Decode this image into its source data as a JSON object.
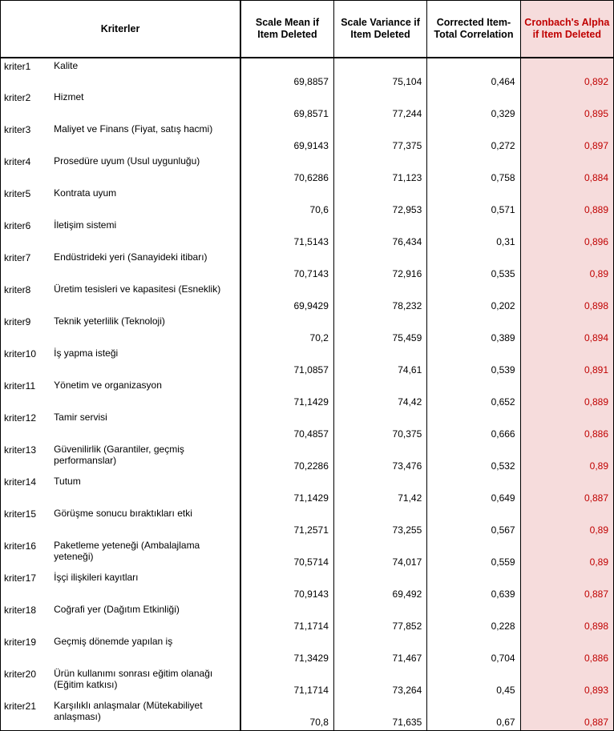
{
  "headers": {
    "kriterler": "Kriterler",
    "scale_mean": "Scale Mean if Item Deleted",
    "scale_var": "Scale Variance if Item Deleted",
    "corrected": "Corrected Item-Total Correlation",
    "alpha": "Cronbach's Alpha if Item Deleted"
  },
  "columns": {
    "id_width": 60,
    "label_width": 212,
    "num_width": 108,
    "alpha_width": 108
  },
  "colors": {
    "alpha_text": "#c00000",
    "alpha_bg": "#f6dcdc",
    "border": "#000000",
    "background": "#ffffff"
  },
  "typography": {
    "body_fontsize": 12,
    "header_fontsize": 12.5,
    "font_family": "Arial"
  },
  "rows": [
    {
      "id": "kriter1",
      "label": "Kalite",
      "mean": "69,8857",
      "var": "75,104",
      "corr": "0,464",
      "alpha": "0,892"
    },
    {
      "id": "kriter2",
      "label": "Hizmet",
      "mean": "69,8571",
      "var": "77,244",
      "corr": "0,329",
      "alpha": "0,895"
    },
    {
      "id": "kriter3",
      "label": "Maliyet ve Finans (Fiyat, satış hacmi)",
      "mean": "69,9143",
      "var": "77,375",
      "corr": "0,272",
      "alpha": "0,897"
    },
    {
      "id": "kriter4",
      "label": "Prosedüre uyum (Usul uygunluğu)",
      "mean": "70,6286",
      "var": "71,123",
      "corr": "0,758",
      "alpha": "0,884"
    },
    {
      "id": "kriter5",
      "label": "Kontrata uyum",
      "mean": "70,6",
      "var": "72,953",
      "corr": "0,571",
      "alpha": "0,889"
    },
    {
      "id": "kriter6",
      "label": "İletişim sistemi",
      "mean": "71,5143",
      "var": "76,434",
      "corr": "0,31",
      "alpha": "0,896"
    },
    {
      "id": "kriter7",
      "label": "Endüstrideki yeri (Sanayideki itibarı)",
      "mean": "70,7143",
      "var": "72,916",
      "corr": "0,535",
      "alpha": "0,89"
    },
    {
      "id": "kriter8",
      "label": "Üretim tesisleri ve kapasitesi (Esneklik)",
      "mean": "69,9429",
      "var": "78,232",
      "corr": "0,202",
      "alpha": "0,898"
    },
    {
      "id": "kriter9",
      "label": "Teknik yeterlilik (Teknoloji)",
      "mean": "70,2",
      "var": "75,459",
      "corr": "0,389",
      "alpha": "0,894"
    },
    {
      "id": "kriter10",
      "label": "İş yapma isteği",
      "mean": "71,0857",
      "var": "74,61",
      "corr": "0,539",
      "alpha": "0,891"
    },
    {
      "id": "kriter11",
      "label": "Yönetim ve organizasyon",
      "mean": "71,1429",
      "var": "74,42",
      "corr": "0,652",
      "alpha": "0,889"
    },
    {
      "id": "kriter12",
      "label": "Tamir servisi",
      "mean": "70,4857",
      "var": "70,375",
      "corr": "0,666",
      "alpha": "0,886"
    },
    {
      "id": "kriter13",
      "label": "Güvenilirlik (Garantiler, geçmiş performanslar)",
      "mean": "70,2286",
      "var": "73,476",
      "corr": "0,532",
      "alpha": "0,89"
    },
    {
      "id": "kriter14",
      "label": "Tutum",
      "mean": "71,1429",
      "var": "71,42",
      "corr": "0,649",
      "alpha": "0,887"
    },
    {
      "id": "kriter15",
      "label": "Görüşme sonucu bıraktıkları etki",
      "mean": "71,2571",
      "var": "73,255",
      "corr": "0,567",
      "alpha": "0,89"
    },
    {
      "id": "kriter16",
      "label": "Paketleme yeteneği (Ambalajlama yeteneği)",
      "mean": "70,5714",
      "var": "74,017",
      "corr": "0,559",
      "alpha": "0,89"
    },
    {
      "id": "kriter17",
      "label": "İşçi ilişkileri kayıtları",
      "mean": "70,9143",
      "var": "69,492",
      "corr": "0,639",
      "alpha": "0,887"
    },
    {
      "id": "kriter18",
      "label": "Coğrafi yer (Dağıtım Etkinliği)",
      "mean": "71,1714",
      "var": "77,852",
      "corr": "0,228",
      "alpha": "0,898"
    },
    {
      "id": "kriter19",
      "label": "Geçmiş dönemde yapılan iş",
      "mean": "71,3429",
      "var": "71,467",
      "corr": "0,704",
      "alpha": "0,886"
    },
    {
      "id": "kriter20",
      "label": "Ürün kullanımı sonrası eğitim olanağı (Eğitim katkısı)",
      "mean": "71,1714",
      "var": "73,264",
      "corr": "0,45",
      "alpha": "0,893"
    },
    {
      "id": "kriter21",
      "label": "Karşılıklı anlaşmalar (Mütekabiliyet anlaşması)",
      "mean": "70,8",
      "var": "71,635",
      "corr": "0,67",
      "alpha": "0,887"
    }
  ]
}
